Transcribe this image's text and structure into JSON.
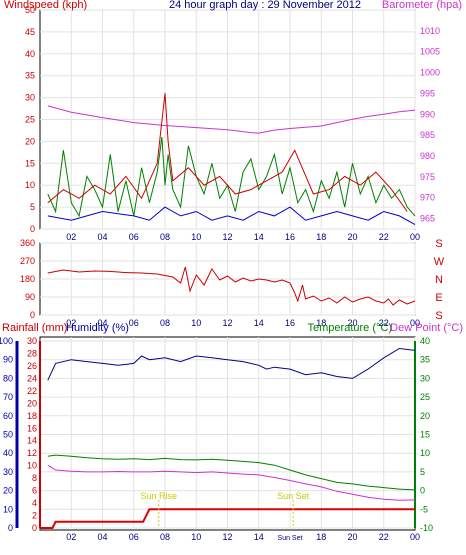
{
  "header": {
    "left_label": "Windspeed (kph)",
    "title": "24 hour graph day : 29 November 2012",
    "right_label": "Barometer (hpa)"
  },
  "colors": {
    "windspeed": "#cc0000",
    "gust": "#008000",
    "wind_avg": "#0000cc",
    "barometer": "#cc33cc",
    "direction": "#cc0000",
    "humidity": "#00008b",
    "temperature": "#008000",
    "dewpoint": "#cc33cc",
    "rainfall": "#dd0000",
    "sun": "#cccc00"
  },
  "labels": {
    "rainfall": "Rainfall (mm)",
    "humidity": "Humidity (%)",
    "temperature": "Temperature (°C)",
    "dewpoint": "Dew Point (°C)",
    "sunrise": "Sun Rise",
    "sunset": "Sun Set",
    "sunset_tick": "Sun Set"
  },
  "chart_data": [
    {
      "type": "line",
      "panel": "wind-barometer",
      "x_ticks": [
        "02",
        "04",
        "06",
        "08",
        "10",
        "12",
        "14",
        "16",
        "18",
        "20",
        "22",
        "00"
      ],
      "left_axis": {
        "label": "Windspeed (kph)",
        "ticks": [
          0,
          5,
          10,
          15,
          20,
          25,
          30,
          35,
          40,
          45,
          50
        ],
        "ylim": [
          0,
          50
        ]
      },
      "right_axis": {
        "label": "Barometer (hpa)",
        "ticks": [
          965,
          970,
          975,
          980,
          985,
          990,
          995,
          1000,
          1005,
          1010
        ],
        "ylim": [
          962.5,
          1015
        ]
      },
      "series": [
        {
          "name": "Barometer (hpa)",
          "axis": "right",
          "x": [
            0.5,
            2,
            4,
            6,
            8,
            10,
            12,
            13.5,
            14,
            15,
            16,
            17,
            18,
            19,
            20,
            21,
            22,
            23,
            24
          ],
          "values": [
            992,
            990.5,
            989.2,
            988,
            987.3,
            986.8,
            986.3,
            985.6,
            985.5,
            986.2,
            986.6,
            986.9,
            987.2,
            988,
            988.8,
            989.5,
            990,
            990.6,
            991
          ]
        },
        {
          "name": "Gust",
          "axis": "left",
          "x": [
            0.5,
            1,
            1.5,
            2,
            2.5,
            3,
            3.5,
            4,
            4.5,
            5,
            5.5,
            6,
            6.5,
            7,
            7.5,
            7.8,
            8,
            8.2,
            8.5,
            9,
            9.5,
            10,
            10.5,
            11,
            11.5,
            12,
            12.5,
            13,
            13.5,
            14,
            14.5,
            15,
            15.5,
            16,
            16.5,
            17,
            17.5,
            18,
            18.5,
            19,
            19.5,
            20,
            20.5,
            21,
            21.5,
            22,
            22.5,
            23,
            23.5,
            24
          ],
          "values": [
            8,
            4,
            18,
            6,
            3,
            12,
            9,
            5,
            17,
            4,
            11,
            3,
            14,
            6,
            13,
            21,
            10,
            17,
            9,
            5,
            19,
            12,
            8,
            15,
            7,
            10,
            4,
            13,
            16,
            9,
            12,
            17,
            8,
            14,
            6,
            9,
            4,
            11,
            7,
            13,
            5,
            15,
            8,
            12,
            6,
            10,
            7,
            9,
            5,
            3
          ]
        },
        {
          "name": "Windspeed",
          "axis": "left",
          "x": [
            0.5,
            1.5,
            2.5,
            3.5,
            4.5,
            5.5,
            6.5,
            7.5,
            8,
            8.2,
            8.5,
            9.5,
            10.5,
            11.5,
            12.5,
            13.5,
            14.5,
            15.5,
            16.3,
            17.5,
            18.5,
            19.5,
            20.5,
            21.5,
            22.5,
            23.5
          ],
          "values": [
            6,
            9,
            7,
            10,
            8,
            12,
            7,
            15,
            31,
            20,
            11,
            14,
            10,
            12,
            8,
            9,
            11,
            13,
            18,
            8,
            9,
            12,
            10,
            13,
            9,
            4
          ]
        },
        {
          "name": "Average",
          "axis": "left",
          "x": [
            0.5,
            2,
            4,
            6,
            7,
            8,
            9,
            10,
            11,
            12,
            13,
            14,
            15,
            16,
            17,
            18,
            19,
            20,
            21,
            22,
            23,
            24
          ],
          "values": [
            3,
            2,
            4,
            3,
            2,
            5,
            3,
            4,
            2,
            3,
            2,
            4,
            3,
            5,
            2,
            3,
            4,
            3,
            2,
            4,
            3,
            1
          ]
        }
      ]
    },
    {
      "type": "line",
      "panel": "wind-direction",
      "x_ticks": [
        "02",
        "04",
        "06",
        "08",
        "10",
        "12",
        "14",
        "16",
        "18",
        "20",
        "22",
        "00"
      ],
      "left_axis": {
        "ticks": [
          0,
          90,
          180,
          270,
          360
        ],
        "ylim": [
          0,
          360
        ]
      },
      "right_axis": {
        "ticks": [
          "S",
          "E",
          "N",
          "W",
          "S"
        ]
      },
      "series": [
        {
          "name": "Direction",
          "axis": "left",
          "x": [
            0.5,
            1.5,
            2.5,
            3.5,
            4.5,
            5.5,
            6.5,
            7.5,
            8.5,
            9.0,
            9.3,
            9.6,
            10,
            10.5,
            11,
            11.5,
            12,
            12.5,
            13,
            13.5,
            14,
            14.5,
            15,
            15.5,
            16,
            16.3,
            16.5,
            16.8,
            17,
            17.5,
            18,
            18.5,
            19,
            19.5,
            20,
            20.5,
            21,
            21.5,
            22,
            22.3,
            22.6,
            23,
            23.5,
            24
          ],
          "values": [
            210,
            225,
            215,
            220,
            218,
            212,
            210,
            205,
            190,
            160,
            240,
            120,
            200,
            150,
            230,
            175,
            195,
            165,
            185,
            170,
            180,
            175,
            165,
            175,
            160,
            110,
            70,
            150,
            80,
            95,
            70,
            85,
            60,
            90,
            65,
            80,
            90,
            70,
            60,
            80,
            50,
            75,
            55,
            70
          ]
        }
      ]
    },
    {
      "type": "line",
      "panel": "temp-humidity-rain",
      "x_ticks": [
        "02",
        "04",
        "06",
        "08",
        "10",
        "12",
        "14",
        "Sun Set",
        "18",
        "20",
        "22",
        "00"
      ],
      "left_axis_humidity": {
        "label": "Humidity (%)",
        "ticks": [
          0,
          10,
          20,
          30,
          40,
          50,
          60,
          70,
          80,
          90,
          100
        ],
        "ylim": [
          0,
          100
        ]
      },
      "left_axis_rain": {
        "label": "Rainfall (mm)",
        "ticks": [
          0,
          2,
          4,
          6,
          8,
          10,
          12,
          14,
          16,
          18,
          20,
          22,
          24,
          26,
          28,
          30
        ],
        "ylim": [
          0,
          30
        ]
      },
      "right_axis": {
        "label": "Temperature (°C)",
        "ticks": [
          -10,
          -5,
          0,
          5,
          10,
          15,
          20,
          25,
          30,
          35,
          40
        ],
        "ylim": [
          -10,
          40
        ]
      },
      "series": [
        {
          "name": "Humidity (%)",
          "axis": "humidity",
          "x": [
            0.5,
            1,
            2,
            3,
            4,
            5,
            6,
            6.5,
            7,
            8,
            9,
            10,
            11,
            12,
            13,
            14,
            14.5,
            15,
            16,
            17,
            18,
            19,
            20,
            21,
            22,
            23,
            24
          ],
          "values": [
            79,
            88,
            90,
            89,
            88,
            87,
            88,
            92,
            90,
            91,
            89,
            92,
            91,
            90,
            89,
            87,
            85,
            86,
            85,
            82,
            83,
            81,
            80,
            85,
            91,
            96,
            95
          ]
        },
        {
          "name": "Temperature (°C)",
          "axis": "temp",
          "x": [
            0.5,
            1,
            2,
            3,
            4,
            5,
            6,
            7,
            8,
            9,
            10,
            11,
            12,
            13,
            14,
            15,
            16,
            17,
            18,
            19,
            20,
            21,
            22,
            23,
            24
          ],
          "values": [
            9.2,
            9.5,
            9.2,
            8.8,
            8.5,
            8.4,
            8.5,
            8.3,
            8.6,
            8.3,
            8.2,
            8.4,
            8.1,
            7.8,
            7.5,
            6.8,
            5.5,
            4.2,
            3.2,
            2.2,
            1.8,
            1.2,
            0.8,
            0.4,
            0.2
          ]
        },
        {
          "name": "Dew Point (°C)",
          "axis": "temp",
          "x": [
            0.5,
            1,
            2,
            3,
            4,
            5,
            6,
            7,
            8,
            9,
            10,
            11,
            12,
            13,
            14,
            15,
            16,
            17,
            18,
            19,
            20,
            21,
            22,
            23,
            24
          ],
          "values": [
            6.8,
            5.5,
            5.2,
            5.0,
            5.0,
            5.1,
            5.0,
            5.0,
            5.2,
            5.0,
            4.8,
            5.0,
            4.7,
            4.4,
            4.2,
            3.5,
            2.7,
            1.8,
            1.0,
            -0.2,
            -1.0,
            -1.8,
            -2.3,
            -2.6,
            -2.5
          ]
        },
        {
          "name": "Rainfall (mm)",
          "axis": "rain",
          "x": [
            0,
            0.8,
            1.0,
            6.6,
            7.0,
            24
          ],
          "values": [
            0,
            0,
            1,
            1,
            3,
            3
          ]
        }
      ]
    }
  ]
}
